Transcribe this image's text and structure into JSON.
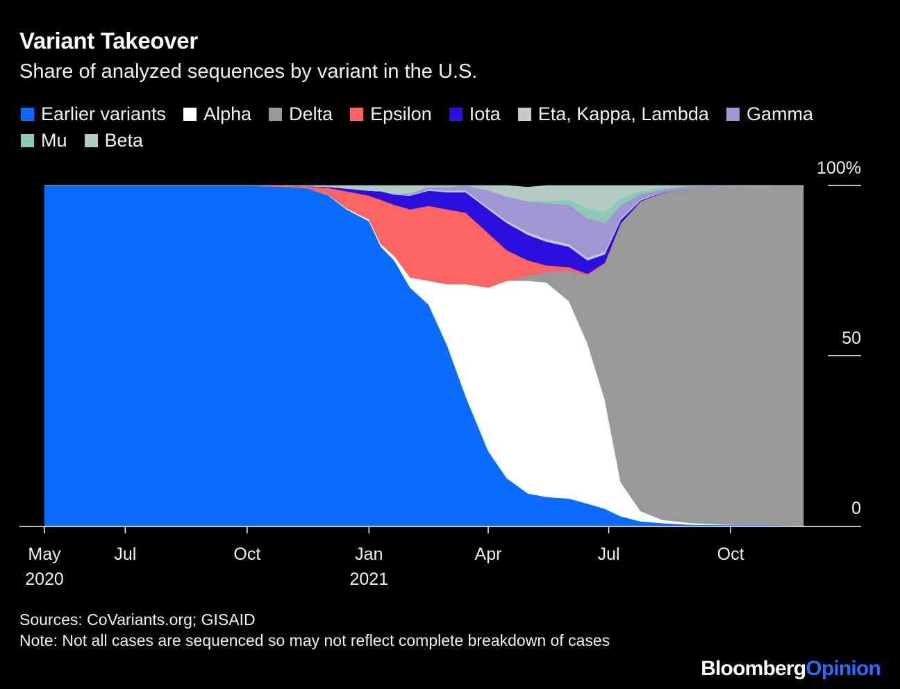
{
  "header": {
    "title": "Variant Takeover",
    "subtitle": "Share of analyzed sequences by variant in the U.S."
  },
  "footer": {
    "sources": "Sources: CoVariants.org; GISAID",
    "note": "Note: Not all cases are sequenced so may not reflect complete breakdown of cases",
    "brand_part1": "Bloomberg",
    "brand_part2": "Opinion"
  },
  "chart_data": {
    "type": "area",
    "stacked": true,
    "title": "Variant Takeover",
    "subtitle": "Share of analyzed sequences by variant in the U.S.",
    "ylim": [
      0,
      100
    ],
    "yticks": [
      {
        "value": 0,
        "label": "0"
      },
      {
        "value": 50,
        "label": "50"
      },
      {
        "value": 100,
        "label": "100%"
      }
    ],
    "xlim": [
      "2020-05-01",
      "2021-11-25"
    ],
    "xticks": [
      {
        "date": "2020-05-01",
        "label": "May",
        "sublabel": "2020"
      },
      {
        "date": "2020-07-01",
        "label": "Jul",
        "sublabel": ""
      },
      {
        "date": "2020-10-01",
        "label": "Oct",
        "sublabel": ""
      },
      {
        "date": "2021-01-01",
        "label": "Jan",
        "sublabel": "2021"
      },
      {
        "date": "2021-04-01",
        "label": "Apr",
        "sublabel": ""
      },
      {
        "date": "2021-07-01",
        "label": "Jul",
        "sublabel": ""
      },
      {
        "date": "2021-10-01",
        "label": "Oct",
        "sublabel": ""
      }
    ],
    "legend_placement": "top",
    "x": [
      "2020-05-01",
      "2020-06-01",
      "2020-07-01",
      "2020-08-01",
      "2020-09-01",
      "2020-10-01",
      "2020-10-15",
      "2020-11-01",
      "2020-11-15",
      "2020-12-01",
      "2020-12-15",
      "2021-01-01",
      "2021-01-10",
      "2021-01-20",
      "2021-02-01",
      "2021-02-15",
      "2021-03-01",
      "2021-03-15",
      "2021-04-01",
      "2021-04-15",
      "2021-05-01",
      "2021-05-15",
      "2021-06-01",
      "2021-06-15",
      "2021-06-28",
      "2021-07-10",
      "2021-07-25",
      "2021-08-10",
      "2021-09-01",
      "2021-10-01",
      "2021-11-01",
      "2021-11-25"
    ],
    "series": [
      {
        "name": "Earlier variants",
        "color": "#0a6cff",
        "values": [
          100,
          100,
          100,
          100,
          100,
          100,
          99.8,
          99.6,
          99.2,
          97.2,
          93,
          89.5,
          82,
          78,
          70,
          65,
          53,
          38,
          22,
          14,
          9.5,
          8.5,
          8,
          6.5,
          5,
          2.8,
          1.3,
          0.8,
          0.3,
          0.2,
          0.2,
          0
        ]
      },
      {
        "name": "Alpha",
        "color": "#ffffff",
        "values": [
          0,
          0,
          0,
          0,
          0,
          0,
          0,
          0,
          0,
          0.1,
          0.3,
          0.5,
          0.8,
          1.3,
          3,
          7,
          18,
          33,
          48,
          58,
          62.5,
          63,
          58,
          47,
          32,
          10,
          3,
          1,
          0.5,
          0.1,
          0,
          0
        ]
      },
      {
        "name": "Delta",
        "color": "#999999",
        "values": [
          0,
          0,
          0,
          0,
          0,
          0,
          0,
          0,
          0,
          0,
          0,
          0,
          0,
          0,
          0,
          0,
          0,
          0,
          0,
          0,
          1.5,
          3,
          9,
          20,
          40,
          76,
          91,
          96,
          98.5,
          99.5,
          99.7,
          99.9
        ]
      },
      {
        "name": "Epsilon",
        "color": "#ff6464",
        "values": [
          0,
          0,
          0,
          0,
          0,
          0,
          0.1,
          0.3,
          0.5,
          2,
          5,
          7,
          13,
          15,
          20,
          22,
          22,
          21,
          16,
          9,
          4.5,
          2,
          1,
          0.5,
          0.3,
          0.1,
          0,
          0,
          0,
          0,
          0,
          0
        ]
      },
      {
        "name": "Iota",
        "color": "#2a0fe0",
        "values": [
          0,
          0,
          0,
          0,
          0,
          0,
          0,
          0,
          0.1,
          0.3,
          0.8,
          1.5,
          2.5,
          3,
          4,
          4.5,
          5,
          6,
          7,
          8,
          7.5,
          7,
          6,
          4,
          2.5,
          1,
          0.3,
          0.1,
          0,
          0,
          0,
          0
        ]
      },
      {
        "name": "Eta, Kappa, Lambda",
        "color": "#c8c8c8",
        "values": [
          0,
          0,
          0,
          0,
          0,
          0,
          0,
          0,
          0,
          0,
          0,
          0,
          0,
          0,
          0.2,
          0.3,
          0.5,
          0.5,
          0.6,
          0.7,
          0.8,
          0.8,
          0.8,
          0.8,
          0.7,
          0.5,
          0.3,
          0.1,
          0,
          0,
          0,
          0
        ]
      },
      {
        "name": "Gamma",
        "color": "#9e97d4",
        "values": [
          0,
          0,
          0,
          0,
          0,
          0,
          0,
          0,
          0,
          0,
          0,
          0,
          0,
          0.2,
          0.5,
          0.8,
          1,
          1.5,
          5,
          7,
          9,
          10.5,
          11.5,
          11.5,
          8.5,
          3.8,
          1.5,
          0.8,
          0.5,
          0.2,
          0.1,
          0.1
        ]
      },
      {
        "name": "Mu",
        "color": "#8ccab4",
        "values": [
          0,
          0,
          0,
          0,
          0,
          0,
          0,
          0,
          0,
          0,
          0,
          0,
          0,
          0,
          0,
          0,
          0,
          0,
          0,
          0.1,
          0.2,
          0.5,
          1.5,
          3,
          3.3,
          2,
          1,
          0.5,
          0.2,
          0,
          0,
          0
        ]
      },
      {
        "name": "Beta",
        "color": "#b4cbc2",
        "values": [
          0,
          0,
          0,
          0,
          0,
          0,
          0.1,
          0.1,
          0.2,
          0.4,
          0.9,
          1.5,
          1.7,
          2.5,
          2.3,
          0.4,
          0.5,
          0,
          1.4,
          3.2,
          4,
          4.7,
          4.2,
          6.7,
          7.7,
          3.8,
          1.6,
          0.7,
          0,
          0,
          0,
          0
        ]
      }
    ]
  }
}
